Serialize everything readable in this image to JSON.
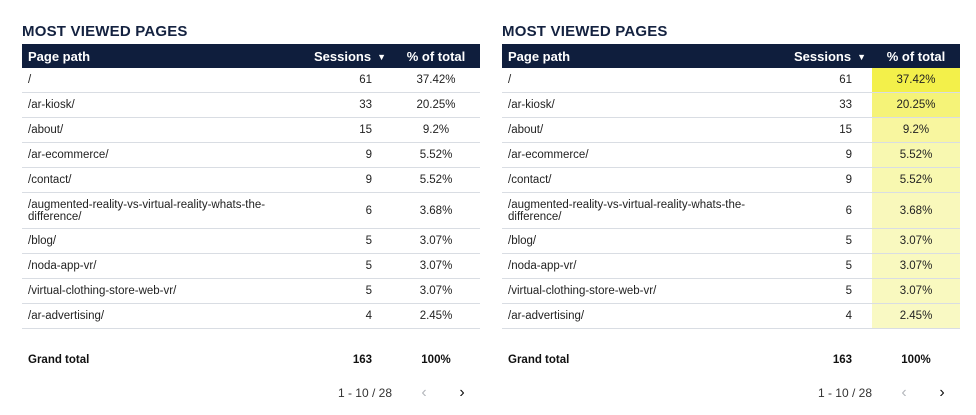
{
  "panels": [
    {
      "title": "MOST VIEWED PAGES",
      "headers": {
        "path": "Page path",
        "sessions": "Sessions",
        "pct": "% of total"
      },
      "sort_indicator": "▼",
      "rows": [
        {
          "path": "/",
          "sessions": "61",
          "pct": "37.42%",
          "share": 0.3742
        },
        {
          "path": "/ar-kiosk/",
          "sessions": "33",
          "pct": "20.25%",
          "share": 0.2025
        },
        {
          "path": "/about/",
          "sessions": "15",
          "pct": "9.2%",
          "share": 0.092
        },
        {
          "path": "/ar-ecommerce/",
          "sessions": "9",
          "pct": "5.52%",
          "share": 0.0552
        },
        {
          "path": "/contact/",
          "sessions": "9",
          "pct": "5.52%",
          "share": 0.0552
        },
        {
          "path": "/augmented-reality-vs-virtual-reality-whats-the-difference/",
          "sessions": "6",
          "pct": "3.68%",
          "share": 0.0368
        },
        {
          "path": "/blog/",
          "sessions": "5",
          "pct": "3.07%",
          "share": 0.0307
        },
        {
          "path": "/noda-app-vr/",
          "sessions": "5",
          "pct": "3.07%",
          "share": 0.0307
        },
        {
          "path": "/virtual-clothing-store-web-vr/",
          "sessions": "5",
          "pct": "3.07%",
          "share": 0.0307
        },
        {
          "path": "/ar-advertising/",
          "sessions": "4",
          "pct": "2.45%",
          "share": 0.0245
        }
      ],
      "total": {
        "label": "Grand total",
        "sessions": "163",
        "pct": "100%"
      },
      "pagination": {
        "range": "1 - 10 / 28",
        "prev": "‹",
        "next": "›"
      },
      "heatmap": false
    },
    {
      "title": "MOST VIEWED PAGES",
      "headers": {
        "path": "Page path",
        "sessions": "Sessions",
        "pct": "% of total"
      },
      "sort_indicator": "▼",
      "rows": [
        {
          "path": "/",
          "sessions": "61",
          "pct": "37.42%",
          "share": 0.3742
        },
        {
          "path": "/ar-kiosk/",
          "sessions": "33",
          "pct": "20.25%",
          "share": 0.2025
        },
        {
          "path": "/about/",
          "sessions": "15",
          "pct": "9.2%",
          "share": 0.092
        },
        {
          "path": "/ar-ecommerce/",
          "sessions": "9",
          "pct": "5.52%",
          "share": 0.0552
        },
        {
          "path": "/contact/",
          "sessions": "9",
          "pct": "5.52%",
          "share": 0.0552
        },
        {
          "path": "/augmented-reality-vs-virtual-reality-whats-the-difference/",
          "sessions": "6",
          "pct": "3.68%",
          "share": 0.0368
        },
        {
          "path": "/blog/",
          "sessions": "5",
          "pct": "3.07%",
          "share": 0.0307
        },
        {
          "path": "/noda-app-vr/",
          "sessions": "5",
          "pct": "3.07%",
          "share": 0.0307
        },
        {
          "path": "/virtual-clothing-store-web-vr/",
          "sessions": "5",
          "pct": "3.07%",
          "share": 0.0307
        },
        {
          "path": "/ar-advertising/",
          "sessions": "4",
          "pct": "2.45%",
          "share": 0.0245
        }
      ],
      "total": {
        "label": "Grand total",
        "sessions": "163",
        "pct": "100%"
      },
      "pagination": {
        "range": "1 - 10 / 28",
        "prev": "‹",
        "next": "›"
      },
      "heatmap": true
    }
  ],
  "colors": {
    "header_bg": "#0f1e3d",
    "title": "#142240",
    "heat_high": "#f3f04a",
    "heat_low": "#fbfbe0"
  }
}
